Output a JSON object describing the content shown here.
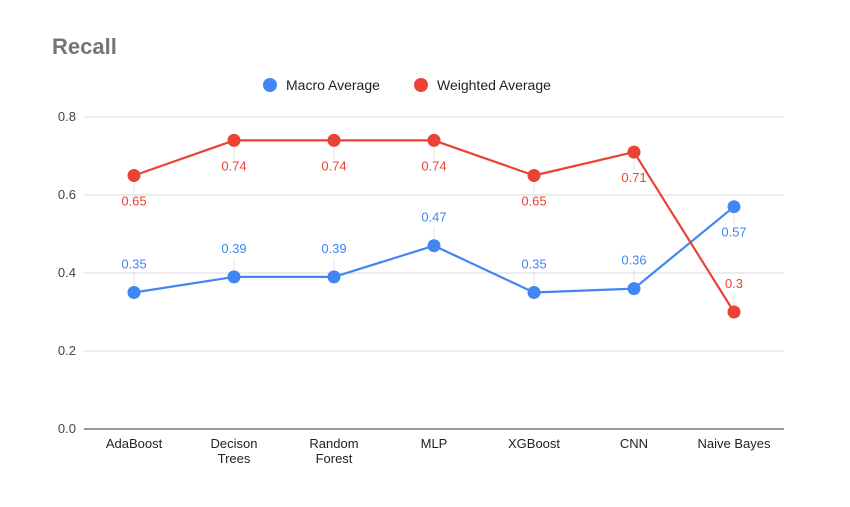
{
  "chart_data": {
    "type": "line",
    "title": "Recall",
    "categories": [
      "AdaBoost",
      "Decison Trees",
      "Random Forest",
      "MLP",
      "XGBoost",
      "CNN",
      "Naive Bayes"
    ],
    "series": [
      {
        "name": "Macro Average",
        "color": "#4285f4",
        "values": [
          0.35,
          0.39,
          0.39,
          0.47,
          0.35,
          0.36,
          0.57
        ],
        "labels": [
          "0.35",
          "0.39",
          "0.39",
          "0.47",
          "0.35",
          "0.36",
          "0.57"
        ]
      },
      {
        "name": "Weighted Average",
        "color": "#ea4335",
        "values": [
          0.65,
          0.74,
          0.74,
          0.74,
          0.65,
          0.71,
          0.3
        ],
        "labels": [
          "0.65",
          "0.74",
          "0.74",
          "0.74",
          "0.65",
          "0.71",
          "0.3"
        ]
      }
    ],
    "yticks": [
      "0.0",
      "0.2",
      "0.4",
      "0.6",
      "0.8"
    ],
    "ylim": [
      0,
      0.8
    ],
    "grid": true,
    "legend": "top-center"
  }
}
